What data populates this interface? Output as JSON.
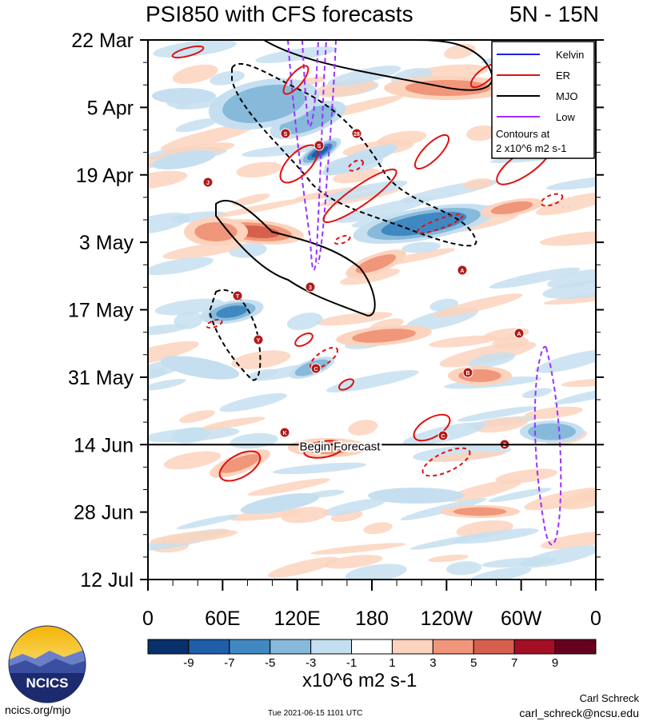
{
  "header": {
    "title": "PSI850 with CFS forecasts",
    "region": "5N - 15N"
  },
  "chart_data": {
    "type": "heatmap",
    "title": "PSI850 with CFS forecasts",
    "y_tick_labels": [
      "22 Mar",
      "5 Apr",
      "19 Apr",
      "3 May",
      "17 May",
      "31 May",
      "14 Jun",
      "28 Jun",
      "12 Jul"
    ],
    "x_tick_labels": [
      "0",
      "60E",
      "120E",
      "180",
      "120W",
      "60W",
      "0"
    ],
    "xlim": [
      0,
      360
    ],
    "ylim": [
      "22 Mar",
      "12 Jul"
    ],
    "colorbar": {
      "labels": [
        "-9",
        "-7",
        "-5",
        "-3",
        "-1",
        "1",
        "3",
        "5",
        "7",
        "9"
      ],
      "colors": [
        "#08306b",
        "#1f5ea8",
        "#3f88c2",
        "#87b9da",
        "#c6dff0",
        "#ffffff",
        "#fcd3bd",
        "#f0967a",
        "#d6604d",
        "#a50f25",
        "#67001f"
      ],
      "units": "x10^6 m2 s-1"
    },
    "forecast_line": {
      "date": "14 Jun",
      "label": "Begin Forecast"
    },
    "legend": {
      "position": "top-right",
      "entries": [
        {
          "name": "Kelvin",
          "color": "#2020e0"
        },
        {
          "name": "ER",
          "color": "#e01010"
        },
        {
          "name": "MJO",
          "color": "#000000"
        },
        {
          "name": "Low",
          "color": "#9b30ff"
        }
      ],
      "note_line1": "Contours at",
      "note_line2": "2 x10^6 m2 s-1"
    },
    "storm_markers": [
      "S",
      "28",
      "S",
      "J",
      "3",
      "A",
      "T",
      "Y",
      "A",
      "C",
      "B",
      "K",
      "C",
      "2"
    ]
  },
  "footer": {
    "site": "ncics.org/mjo",
    "timestamp": "Tue 2021-06-15 1101 UTC",
    "author": "Carl Schreck",
    "email": "carl_schreck@ncsu.edu",
    "logo_text": "NCICS"
  }
}
